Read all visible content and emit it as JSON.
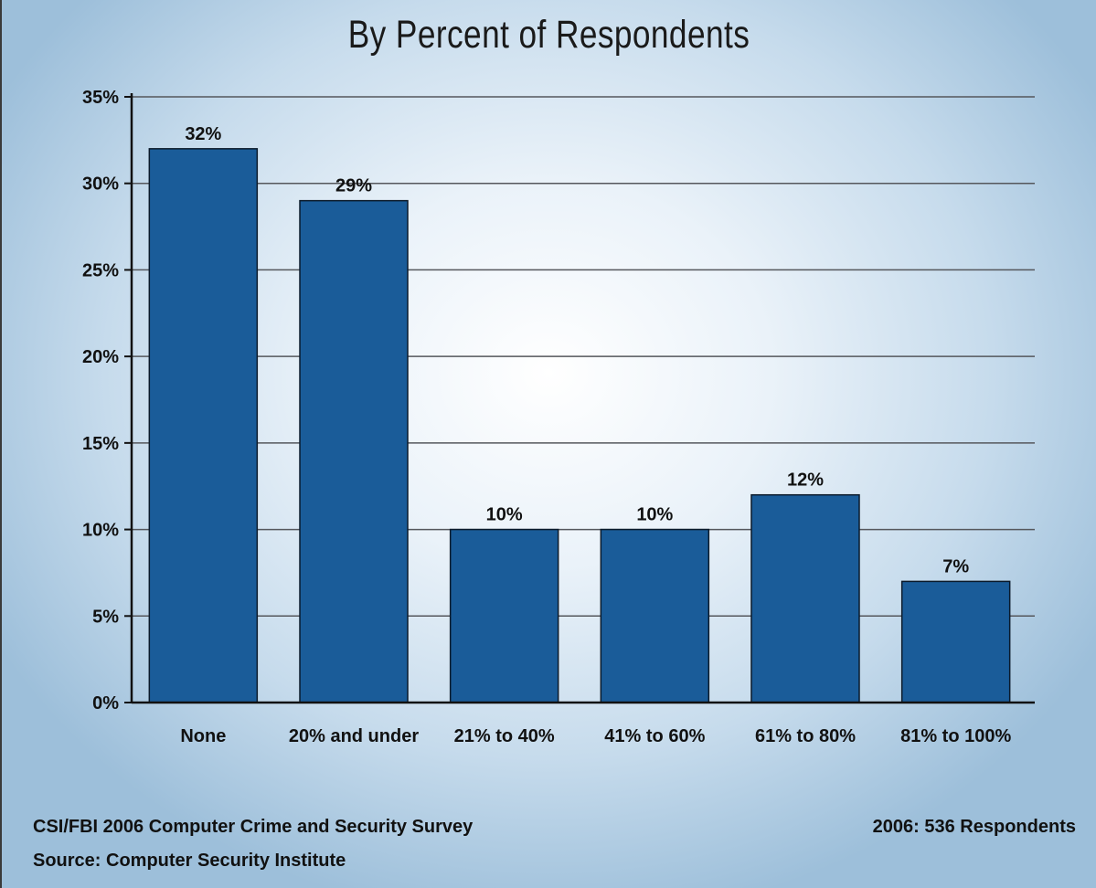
{
  "chart_data": {
    "type": "bar",
    "title": "By Percent of Respondents",
    "categories": [
      "None",
      "20% and under",
      "21% to 40%",
      "41% to 60%",
      "61% to 80%",
      "81% to 100%"
    ],
    "values": [
      32,
      29,
      10,
      10,
      12,
      7
    ],
    "data_labels": [
      "32%",
      "29%",
      "10%",
      "10%",
      "12%",
      "7%"
    ],
    "y_ticks": [
      0,
      5,
      10,
      15,
      20,
      25,
      30,
      35
    ],
    "y_tick_labels": [
      "0%",
      "5%",
      "10%",
      "15%",
      "20%",
      "25%",
      "30%",
      "35%"
    ],
    "ylim": [
      0,
      35
    ],
    "grid": true,
    "legend": "none",
    "bar_color": "#1a5c99",
    "grid_color": "#55575c"
  },
  "footer": {
    "source_line_1": "CSI/FBI 2006 Computer Crime and Security Survey",
    "source_line_2": "Source: Computer Security Institute",
    "respondents": "2006: 536 Respondents"
  }
}
